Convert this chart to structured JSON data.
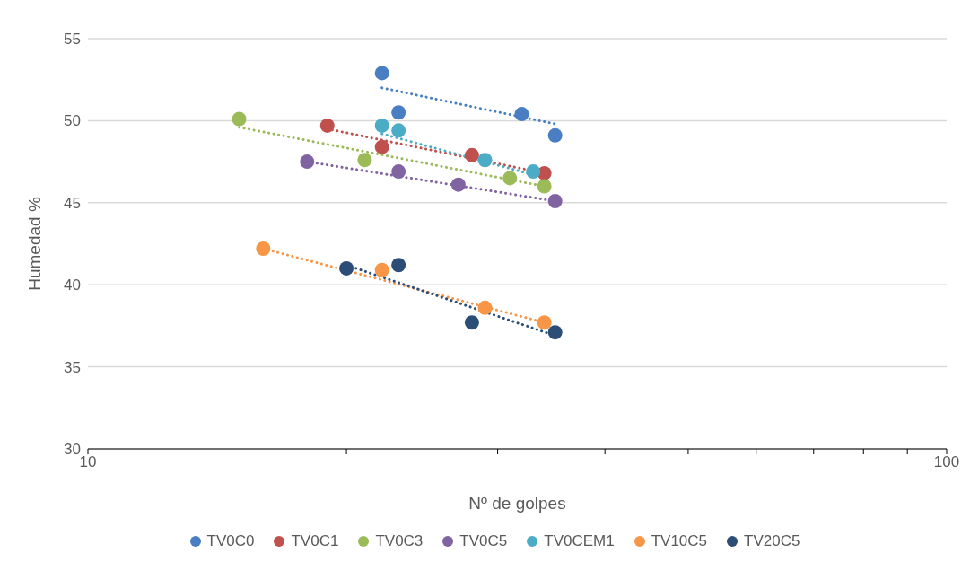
{
  "chart_data": {
    "type": "scatter",
    "xlabel": "Nº de golpes",
    "ylabel": "Humedad %",
    "log": "x",
    "xlim": [
      10,
      100
    ],
    "xticks": [
      10,
      {
        "value": 20,
        "label": null
      },
      {
        "value": 30,
        "label": null
      },
      {
        "value": 40,
        "label": null
      },
      {
        "value": 50,
        "label": null
      },
      {
        "value": 60,
        "label": null
      },
      {
        "value": 70,
        "label": null
      },
      {
        "value": 80,
        "label": null
      },
      {
        "value": 90,
        "label": null
      },
      100
    ],
    "ylim": [
      30,
      55
    ],
    "yticks": [
      30,
      35,
      40,
      45,
      50,
      55
    ],
    "grid": "y",
    "legend": "bottom",
    "marker": "circle",
    "series": [
      {
        "name": "TV0C0",
        "color": "#4a7ec2",
        "x": [
          22,
          23,
          32,
          35
        ],
        "values": [
          52.9,
          50.5,
          50.4,
          49.1
        ]
      },
      {
        "name": "TV0C1",
        "color": "#c0504d",
        "x": [
          19,
          22,
          28,
          34
        ],
        "values": [
          49.7,
          48.4,
          47.9,
          46.8
        ]
      },
      {
        "name": "TV0C3",
        "color": "#9bbb59",
        "x": [
          15,
          21,
          31,
          34
        ],
        "values": [
          50.1,
          47.6,
          46.5,
          46.0
        ]
      },
      {
        "name": "TV0C5",
        "color": "#8064a2",
        "x": [
          18,
          23,
          27,
          35
        ],
        "values": [
          47.5,
          46.9,
          46.1,
          45.1
        ]
      },
      {
        "name": "TV0CEM1",
        "color": "#4bacc6",
        "x": [
          22,
          23,
          29,
          33
        ],
        "values": [
          49.7,
          49.4,
          47.6,
          46.9
        ]
      },
      {
        "name": "TV10C5",
        "color": "#f79646",
        "x": [
          16,
          22,
          29,
          34
        ],
        "values": [
          42.2,
          40.9,
          38.6,
          37.7
        ]
      },
      {
        "name": "TV20C5",
        "color": "#2c4d75",
        "x": [
          20,
          23,
          28,
          35
        ],
        "values": [
          41.0,
          41.2,
          37.7,
          37.1
        ]
      },
      {
        "type": "line",
        "marker": "none",
        "color": "#4a7ec2",
        "line_style": "dotted",
        "x": [
          22,
          35
        ],
        "values": [
          52.0,
          49.8
        ]
      },
      {
        "type": "line",
        "marker": "none",
        "color": "#c0504d",
        "line_style": "dotted",
        "x": [
          19,
          34
        ],
        "values": [
          49.5,
          46.8
        ]
      },
      {
        "type": "line",
        "marker": "none",
        "color": "#9bbb59",
        "line_style": "dotted",
        "x": [
          15,
          34
        ],
        "values": [
          49.6,
          46.0
        ]
      },
      {
        "type": "line",
        "marker": "none",
        "color": "#8064a2",
        "line_style": "dotted",
        "x": [
          18,
          35
        ],
        "values": [
          47.5,
          45.1
        ]
      },
      {
        "type": "line",
        "marker": "none",
        "color": "#4bacc6",
        "line_style": "dotted",
        "x": [
          22,
          33
        ],
        "values": [
          49.2,
          46.7
        ]
      },
      {
        "type": "line",
        "marker": "none",
        "color": "#f79646",
        "line_style": "dotted",
        "x": [
          16,
          34
        ],
        "values": [
          42.2,
          37.7
        ]
      },
      {
        "type": "line",
        "marker": "none",
        "color": "#2c4d75",
        "line_style": "dotted",
        "x": [
          20,
          35
        ],
        "values": [
          41.2,
          36.9
        ]
      }
    ]
  }
}
